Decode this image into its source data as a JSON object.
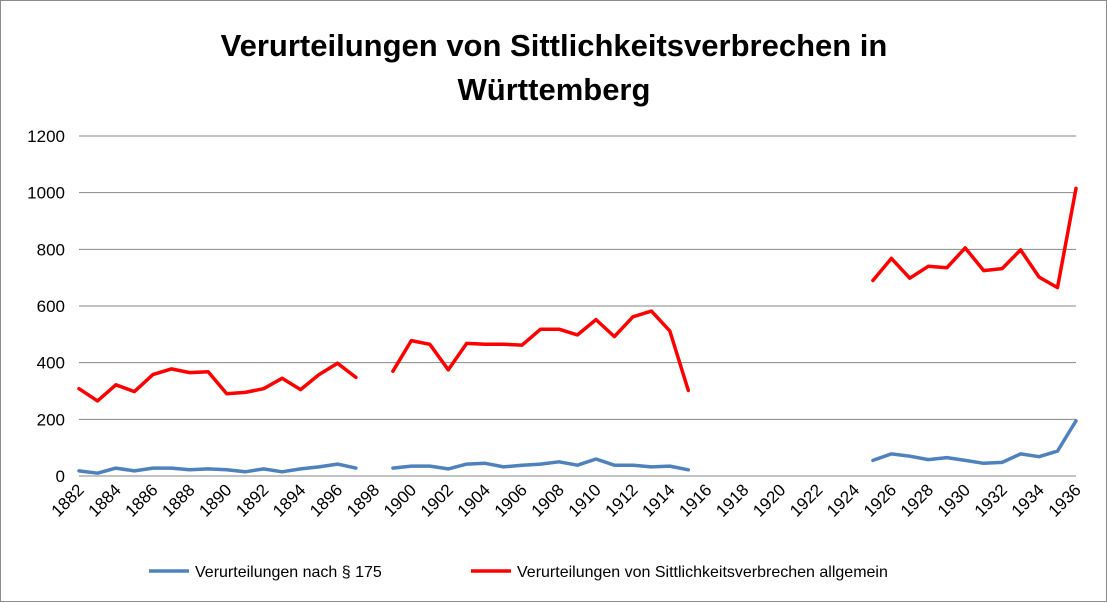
{
  "chart_data": {
    "type": "line",
    "title_lines": [
      "Verurteilungen von Sittlichkeitsverbrechen in",
      "Württemberg"
    ],
    "xlabel": "",
    "ylabel": "",
    "ylim": [
      0,
      1200
    ],
    "y_ticks": [
      0,
      200,
      400,
      600,
      800,
      1000,
      1200
    ],
    "x_range": [
      1882,
      1936
    ],
    "x_tick_labels": [
      "1882",
      "1884",
      "1886",
      "1888",
      "1890",
      "1892",
      "1894",
      "1896",
      "1898",
      "1900",
      "1902",
      "1904",
      "1906",
      "1908",
      "1910",
      "1912",
      "1914",
      "1916",
      "1918",
      "1920",
      "1922",
      "1924",
      "1926",
      "1928",
      "1930",
      "1932",
      "1934",
      "1936"
    ],
    "grid": "horizontal",
    "legend_position": "bottom",
    "series": [
      {
        "name": "Verurteilungen nach § 175",
        "color": "#4f81bd",
        "points": [
          [
            1882,
            18
          ],
          [
            1883,
            10
          ],
          [
            1884,
            28
          ],
          [
            1885,
            18
          ],
          [
            1886,
            28
          ],
          [
            1887,
            28
          ],
          [
            1888,
            22
          ],
          [
            1889,
            25
          ],
          [
            1890,
            22
          ],
          [
            1891,
            15
          ],
          [
            1892,
            25
          ],
          [
            1893,
            15
          ],
          [
            1894,
            25
          ],
          [
            1895,
            32
          ],
          [
            1896,
            42
          ],
          [
            1897,
            28
          ],
          null,
          [
            1899,
            28
          ],
          [
            1900,
            35
          ],
          [
            1901,
            35
          ],
          [
            1902,
            25
          ],
          [
            1903,
            42
          ],
          [
            1904,
            45
          ],
          [
            1905,
            32
          ],
          [
            1906,
            38
          ],
          [
            1907,
            42
          ],
          [
            1908,
            50
          ],
          [
            1909,
            38
          ],
          [
            1910,
            60
          ],
          [
            1911,
            38
          ],
          [
            1912,
            38
          ],
          [
            1913,
            32
          ],
          [
            1914,
            35
          ],
          [
            1915,
            22
          ],
          null,
          [
            1925,
            55
          ],
          [
            1926,
            78
          ],
          [
            1927,
            70
          ],
          [
            1928,
            58
          ],
          [
            1929,
            65
          ],
          [
            1930,
            55
          ],
          [
            1931,
            45
          ],
          [
            1932,
            48
          ],
          [
            1933,
            78
          ],
          [
            1934,
            68
          ],
          [
            1935,
            88
          ],
          [
            1936,
            195
          ]
        ]
      },
      {
        "name": "Verurteilungen von Sittlichkeitsverbrechen allgemein",
        "color": "#ff0000",
        "points": [
          [
            1882,
            308
          ],
          [
            1883,
            265
          ],
          [
            1884,
            322
          ],
          [
            1885,
            298
          ],
          [
            1886,
            358
          ],
          [
            1887,
            378
          ],
          [
            1888,
            365
          ],
          [
            1889,
            368
          ],
          [
            1890,
            290
          ],
          [
            1891,
            295
          ],
          [
            1892,
            308
          ],
          [
            1893,
            345
          ],
          [
            1894,
            305
          ],
          [
            1895,
            358
          ],
          [
            1896,
            398
          ],
          [
            1897,
            348
          ],
          null,
          [
            1899,
            370
          ],
          [
            1900,
            478
          ],
          [
            1901,
            465
          ],
          [
            1902,
            375
          ],
          [
            1903,
            468
          ],
          [
            1904,
            465
          ],
          [
            1905,
            465
          ],
          [
            1906,
            462
          ],
          [
            1907,
            518
          ],
          [
            1908,
            518
          ],
          [
            1909,
            498
          ],
          [
            1910,
            552
          ],
          [
            1911,
            492
          ],
          [
            1912,
            562
          ],
          [
            1913,
            582
          ],
          [
            1914,
            512
          ],
          [
            1915,
            302
          ],
          null,
          [
            1925,
            690
          ],
          [
            1926,
            768
          ],
          [
            1927,
            698
          ],
          [
            1928,
            740
          ],
          [
            1929,
            735
          ],
          [
            1930,
            805
          ],
          [
            1931,
            725
          ],
          [
            1932,
            732
          ],
          [
            1933,
            798
          ],
          [
            1934,
            702
          ],
          [
            1935,
            665
          ],
          [
            1936,
            1015
          ]
        ]
      }
    ]
  }
}
